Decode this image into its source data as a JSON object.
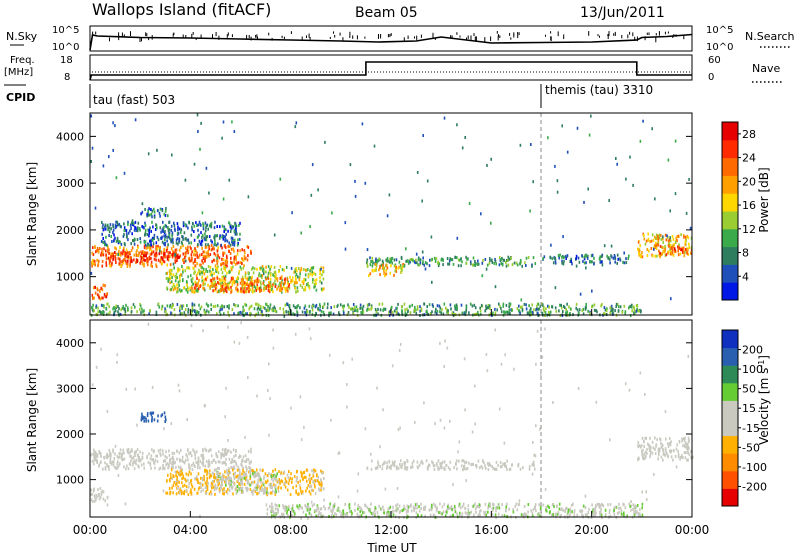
{
  "header": {
    "site": "Wallops Island (fitACF)",
    "beam": "Beam 05",
    "date": "13/Jun/2011"
  },
  "strip_labels": {
    "nsky": "N.Sky",
    "nsky_top": "10^5",
    "nsky_bottom": "10^0",
    "nsearch": "N.Search",
    "nsearch_top": "10^5",
    "nsearch_bottom": "10^0",
    "freq": "Freq.",
    "freq_unit": "[MHz]",
    "freq_top": "18",
    "freq_bottom": "8",
    "nave": "Nave",
    "nave_top": "60",
    "nave_bottom": "0",
    "cpid": "CPID"
  },
  "cpid_modes": [
    {
      "label": "tau (fast) 503",
      "start_hour": 0
    },
    {
      "label": "themis (tau) 3310",
      "start_hour": 18
    }
  ],
  "colors": {
    "power": [
      "#0018e6",
      "#1f4fb8",
      "#2e7d5f",
      "#3aaa4a",
      "#9acd32",
      "#ffd700",
      "#ff9f00",
      "#ff6a00",
      "#ff2a00",
      "#e60000"
    ],
    "velocity": [
      "#e60000",
      "#ff5000",
      "#ff8c00",
      "#ffb000",
      "#c9c9c0",
      "#c9c9c0",
      "#66cc33",
      "#2e8b57",
      "#2a5fb0",
      "#1030c0"
    ]
  },
  "chart_data": [
    {
      "type": "heatmap",
      "panel": "power",
      "xlabel": "",
      "ylabel": "Slant Range [km]",
      "xlim": [
        0,
        24
      ],
      "ylim": [
        180,
        4500
      ],
      "yticks": [
        "1000",
        "2000",
        "3000",
        "4000"
      ],
      "colorbar": {
        "label": "Power [dB]",
        "ticks": [
          "4",
          "8",
          "12",
          "16",
          "20",
          "24",
          "28"
        ],
        "range": [
          0,
          30
        ]
      },
      "regions": [
        {
          "t0": 0,
          "t1": 6.4,
          "r0": 1250,
          "r1": 1700,
          "level": 22
        },
        {
          "t0": 0.4,
          "t1": 3.6,
          "r0": 1350,
          "r1": 1550,
          "level": 26
        },
        {
          "t0": 3.0,
          "t1": 9.3,
          "r0": 700,
          "r1": 1250,
          "level": 14
        },
        {
          "t0": 4.0,
          "t1": 8.0,
          "r0": 700,
          "r1": 1000,
          "level": 22
        },
        {
          "t0": 0,
          "t1": 0.7,
          "r0": 550,
          "r1": 850,
          "level": 24
        },
        {
          "t0": 2.0,
          "t1": 3.0,
          "r0": 2300,
          "r1": 2500,
          "level": 6
        },
        {
          "t0": 0.4,
          "t1": 6.0,
          "r0": 1700,
          "r1": 2200,
          "level": 6
        },
        {
          "t0": 11.0,
          "t1": 17.8,
          "r0": 1250,
          "r1": 1450,
          "level": 10
        },
        {
          "t0": 11.0,
          "t1": 12.5,
          "r0": 1050,
          "r1": 1300,
          "level": 18
        },
        {
          "t0": 0,
          "t1": 22,
          "r0": 200,
          "r1": 450,
          "level": 10
        },
        {
          "t0": 21.8,
          "t1": 24,
          "r0": 1450,
          "r1": 1950,
          "level": 18
        },
        {
          "t0": 22.6,
          "t1": 23.8,
          "r0": 1500,
          "r1": 1700,
          "level": 24
        },
        {
          "t0": 18.0,
          "t1": 21.5,
          "r0": 1300,
          "r1": 1500,
          "level": 7
        }
      ]
    },
    {
      "type": "heatmap",
      "panel": "velocity",
      "xlabel": "Time UT",
      "ylabel": "Slant Range [km]",
      "xlim": [
        0,
        24
      ],
      "ylim": [
        180,
        4500
      ],
      "xticks": [
        "00:00",
        "04:00",
        "08:00",
        "12:00",
        "16:00",
        "20:00",
        "00:00"
      ],
      "yticks": [
        "1000",
        "2000",
        "3000",
        "4000"
      ],
      "colorbar": {
        "label": "Velocity [m s^-1]",
        "ticks": [
          "-200",
          "-100",
          "-50",
          "-15",
          "15",
          "50",
          "100",
          "200"
        ],
        "range": [
          -250,
          250
        ]
      },
      "regions": [
        {
          "t0": 0,
          "t1": 6.4,
          "r0": 1250,
          "r1": 1700,
          "level": 0
        },
        {
          "t0": 3.0,
          "t1": 9.3,
          "r0": 700,
          "r1": 1250,
          "level": -60
        },
        {
          "t0": 5.0,
          "t1": 7.5,
          "r0": 750,
          "r1": 1200,
          "level": 40
        },
        {
          "t0": 2.0,
          "t1": 3.0,
          "r0": 2300,
          "r1": 2500,
          "level": 180
        },
        {
          "t0": 11.0,
          "t1": 17.8,
          "r0": 1250,
          "r1": 1450,
          "level": 0
        },
        {
          "t0": 7.0,
          "t1": 22.0,
          "r0": 200,
          "r1": 500,
          "level": 40
        },
        {
          "t0": 21.8,
          "t1": 24,
          "r0": 1450,
          "r1": 1950,
          "level": 0
        },
        {
          "t0": 0,
          "t1": 0.7,
          "r0": 550,
          "r1": 850,
          "level": -30
        }
      ]
    },
    {
      "type": "line",
      "panel": "nsky",
      "ylim": [
        0,
        5
      ],
      "x": [
        0,
        0.1,
        0.3,
        2,
        4,
        6,
        8,
        10,
        11.5,
        13,
        14,
        16,
        18,
        20,
        21.8,
        22,
        23,
        24
      ],
      "y": [
        0.2,
        3.2,
        3.0,
        2.7,
        2.6,
        2.4,
        2.2,
        2.0,
        1.8,
        2.0,
        2.8,
        1.6,
        1.7,
        1.8,
        2.2,
        2.7,
        2.9,
        3.3
      ]
    },
    {
      "type": "line",
      "panel": "frequency",
      "ylim": [
        8,
        18
      ],
      "x": [
        0,
        0.05,
        11.0,
        11.0,
        21.8,
        21.8,
        24
      ],
      "y": [
        8,
        10.0,
        10.0,
        15.2,
        15.2,
        10.0,
        10.0
      ]
    }
  ]
}
